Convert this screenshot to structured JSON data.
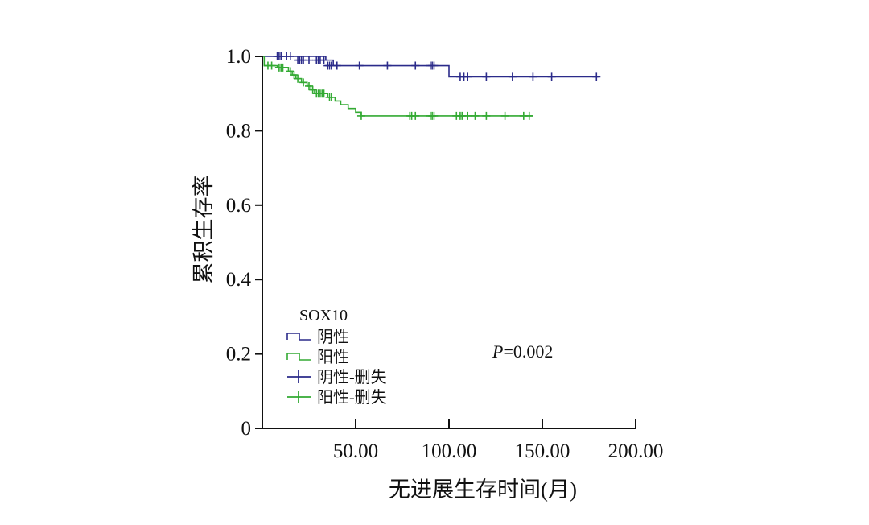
{
  "chart_data": {
    "type": "line",
    "subtype": "kaplan-meier",
    "title": "",
    "xlabel": "无进展生存时间(月)",
    "ylabel": "累积生存率",
    "xlim": [
      0,
      200
    ],
    "ylim": [
      0,
      1.0
    ],
    "x_ticks": [
      50,
      100,
      150,
      200
    ],
    "x_tick_labels": [
      "50.00",
      "100.00",
      "150.00",
      "200.00"
    ],
    "y_ticks": [
      0,
      0.2,
      0.4,
      0.6,
      0.8,
      1.0
    ],
    "y_tick_labels": [
      "0",
      "0.2",
      "0.4",
      "0.6",
      "0.8",
      "1.0"
    ],
    "legend": {
      "title": "SOX10",
      "position": "lower-left",
      "entries": [
        {
          "label": "阴性",
          "style": "step",
          "series": "negative"
        },
        {
          "label": "阳性",
          "style": "step",
          "series": "positive"
        },
        {
          "label": "阴性-删失",
          "style": "censor",
          "series": "negative"
        },
        {
          "label": "阳性-删失",
          "style": "censor",
          "series": "positive"
        }
      ]
    },
    "annotations": [
      {
        "prefix": "P",
        "text": "=0.002"
      }
    ],
    "series": [
      {
        "name": "阴性",
        "key": "negative",
        "color": "#2b2b8a",
        "steps": [
          [
            0,
            1.0
          ],
          [
            34,
            0.99
          ],
          [
            38,
            0.975
          ],
          [
            98,
            0.975
          ],
          [
            100,
            0.945
          ],
          [
            180,
            0.945
          ]
        ],
        "censored": [
          [
            8,
            1.0
          ],
          [
            9,
            1.0
          ],
          [
            10,
            1.0
          ],
          [
            13,
            1.0
          ],
          [
            15,
            1.0
          ],
          [
            19,
            0.99
          ],
          [
            20,
            0.99
          ],
          [
            21,
            0.99
          ],
          [
            22,
            0.99
          ],
          [
            25,
            0.99
          ],
          [
            29,
            0.99
          ],
          [
            30,
            0.99
          ],
          [
            31,
            0.99
          ],
          [
            33,
            0.99
          ],
          [
            35,
            0.975
          ],
          [
            36,
            0.975
          ],
          [
            37,
            0.975
          ],
          [
            40,
            0.975
          ],
          [
            52,
            0.975
          ],
          [
            67,
            0.975
          ],
          [
            82,
            0.975
          ],
          [
            90,
            0.975
          ],
          [
            91,
            0.975
          ],
          [
            92,
            0.975
          ],
          [
            106,
            0.945
          ],
          [
            108,
            0.945
          ],
          [
            110,
            0.945
          ],
          [
            120,
            0.945
          ],
          [
            134,
            0.945
          ],
          [
            145,
            0.945
          ],
          [
            155,
            0.945
          ],
          [
            179,
            0.945
          ]
        ]
      },
      {
        "name": "阳性",
        "key": "positive",
        "color": "#33aa33",
        "steps": [
          [
            0,
            1.0
          ],
          [
            1,
            0.975
          ],
          [
            8,
            0.97
          ],
          [
            14,
            0.96
          ],
          [
            16,
            0.95
          ],
          [
            18,
            0.94
          ],
          [
            21,
            0.93
          ],
          [
            24,
            0.92
          ],
          [
            26,
            0.91
          ],
          [
            28,
            0.9
          ],
          [
            35,
            0.89
          ],
          [
            39,
            0.88
          ],
          [
            42,
            0.87
          ],
          [
            46,
            0.86
          ],
          [
            50,
            0.85
          ],
          [
            53,
            0.84
          ],
          [
            145,
            0.84
          ]
        ],
        "censored": [
          [
            3,
            0.975
          ],
          [
            5,
            0.975
          ],
          [
            9,
            0.97
          ],
          [
            10,
            0.97
          ],
          [
            11,
            0.97
          ],
          [
            15,
            0.96
          ],
          [
            17,
            0.95
          ],
          [
            19,
            0.94
          ],
          [
            22,
            0.93
          ],
          [
            25,
            0.92
          ],
          [
            27,
            0.91
          ],
          [
            29,
            0.9
          ],
          [
            30,
            0.9
          ],
          [
            31,
            0.9
          ],
          [
            32,
            0.9
          ],
          [
            33,
            0.9
          ],
          [
            36,
            0.89
          ],
          [
            37,
            0.89
          ],
          [
            53,
            0.84
          ],
          [
            79,
            0.84
          ],
          [
            80,
            0.84
          ],
          [
            82,
            0.84
          ],
          [
            90,
            0.84
          ],
          [
            91,
            0.84
          ],
          [
            92,
            0.84
          ],
          [
            104,
            0.84
          ],
          [
            106,
            0.84
          ],
          [
            107,
            0.84
          ],
          [
            110,
            0.84
          ],
          [
            114,
            0.84
          ],
          [
            120,
            0.84
          ],
          [
            130,
            0.84
          ],
          [
            140,
            0.84
          ],
          [
            143,
            0.84
          ]
        ]
      }
    ]
  }
}
